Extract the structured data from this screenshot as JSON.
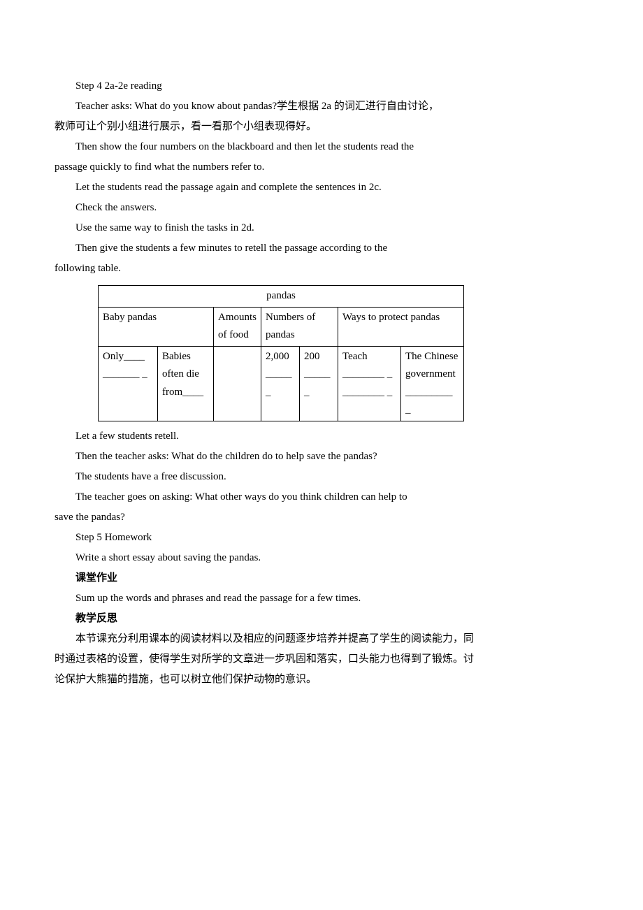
{
  "step4_heading": "Step 4 2a-2e reading",
  "step4_p1": "Teacher asks: What do you know about pandas?学生根据 2a 的词汇进行自由讨论，",
  "step4_p1b": "教师可让个别小组进行展示，看一看那个小组表现得好。",
  "step4_p2": "Then show the four numbers on the blackboard and then let the students read the",
  "step4_p2b": "passage quickly to find what the numbers refer to.",
  "step4_p3": "Let the students read the passage again and complete the sentences in 2c.",
  "step4_p4": "Check the answers.",
  "step4_p5": "Use the same way to finish the tasks in 2d.",
  "step4_p6": "Then give the students a few minutes to retell the passage according to the",
  "step4_p6b": "following table.",
  "table_title": "pandas",
  "table_h1": "Baby pandas",
  "table_h2": "Amounts of food",
  "table_h3": "Numbers of pandas",
  "table_h4": "Ways to protect pandas",
  "cell_only": "Only____ _______ _",
  "cell_babies": "Babies often die from____",
  "cell_2000": "2,000 _____ _",
  "cell_200": "200 _____ _",
  "cell_teach": "Teach ________ _ ________ _",
  "cell_chinese": "The Chinese government _________ _",
  "after_p1": "Let a few students retell.",
  "after_p2": "Then the teacher asks: What do the children do to help save the pandas?",
  "after_p3": "The students have a free discussion.",
  "after_p4": "The teacher goes on asking: What other ways do you think children can help to",
  "after_p4b": "save the pandas?",
  "step5_heading": "Step 5 Homework",
  "step5_p1": "Write a short essay about saving the pandas.",
  "homework_heading": "课堂作业",
  "homework_p1": "Sum up the words and phrases and read the passage for a few times.",
  "reflection_heading": "教学反思",
  "reflection_p1": "本节课充分利用课本的阅读材料以及相应的问题逐步培养并提高了学生的阅读能力，同",
  "reflection_p1b": "时通过表格的设置，使得学生对所学的文章进一步巩固和落实，口头能力也得到了锻炼。讨",
  "reflection_p1c": "论保护大熊猫的措施，也可以树立他们保护动物的意识。"
}
